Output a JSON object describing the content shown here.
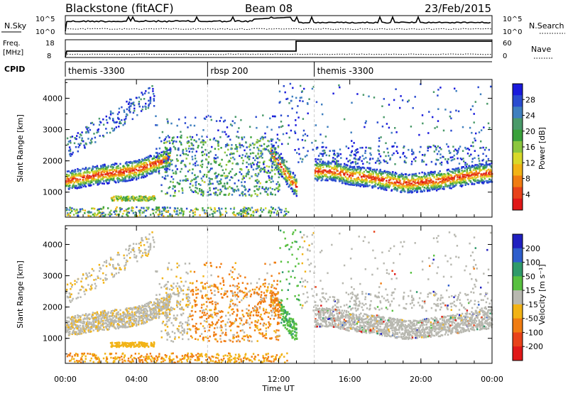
{
  "header": {
    "title": "Blackstone (fitACF)",
    "beam": "Beam 08",
    "date": "23/Feb/2015"
  },
  "nsky_panel": {
    "label": "N.Sky",
    "right_label": "N.Search",
    "left_ticks": [
      "10^5",
      "10^0"
    ],
    "right_ticks": [
      "10^5",
      "10^0"
    ]
  },
  "freq_panel": {
    "label_top": "Freq.",
    "label_unit": "[MHz]",
    "right_label": "Nave",
    "left_ticks": [
      "18",
      "8"
    ],
    "right_ticks": [
      "60",
      "0"
    ]
  },
  "cpid_panel": {
    "label": "CPID",
    "segments": [
      {
        "text": "themis -3300",
        "start_hour": 0
      },
      {
        "text": "rbsp 200",
        "start_hour": 8
      },
      {
        "text": "themis -3300",
        "start_hour": 14
      }
    ]
  },
  "chart_data": [
    {
      "type": "heatmap",
      "name": "power",
      "ylabel": "Slant Range [km]",
      "yticks": [
        1000,
        2000,
        3000,
        4000
      ],
      "ylim": [
        200,
        4600
      ],
      "xlim": [
        0,
        24
      ],
      "colorbar": {
        "label": "Power [dB]",
        "ticks": [
          "4",
          "8",
          "12",
          "16",
          "20",
          "24",
          "28"
        ],
        "colors": [
          "#1a1adc",
          "#2a4bd0",
          "#3f7fbf",
          "#4a9a6a",
          "#3aa13a",
          "#8cc63e",
          "#d8d82a",
          "#f2b316",
          "#f07c12",
          "#e8421a",
          "#e01818"
        ]
      },
      "features": [
        {
          "kind": "band",
          "x": [
            0,
            1,
            2,
            3,
            4,
            5,
            5.8
          ],
          "y": [
            1400,
            1500,
            1600,
            1650,
            1750,
            1950,
            2100
          ],
          "intensity": "high"
        },
        {
          "kind": "band",
          "x": [
            14,
            15,
            16,
            17,
            18,
            19,
            20,
            21,
            22,
            23,
            24
          ],
          "y": [
            1700,
            1700,
            1550,
            1500,
            1400,
            1300,
            1350,
            1400,
            1500,
            1600,
            1650
          ],
          "intensity": "high"
        },
        {
          "kind": "band",
          "x": [
            11.5,
            12,
            12.5,
            12.9
          ],
          "y": [
            2300,
            1900,
            1500,
            1200
          ],
          "intensity": "high"
        }
      ]
    },
    {
      "type": "heatmap",
      "name": "velocity",
      "ylabel": "Slant Range [km]",
      "xlabel": "Time UT",
      "yticks": [
        1000,
        2000,
        3000,
        4000
      ],
      "ylim": [
        200,
        4600
      ],
      "xticks": [
        "00:00",
        "04:00",
        "08:00",
        "12:00",
        "16:00",
        "20:00",
        "00:00"
      ],
      "xlim": [
        0,
        24
      ],
      "colorbar": {
        "label": "Velocity [m s⁻¹]",
        "ticks": [
          "200",
          "100",
          "50",
          "15",
          "-15",
          "-50",
          "-100",
          "-200"
        ],
        "colors": [
          "#2020c0",
          "#2e5ecc",
          "#2f9a6a",
          "#58c040",
          "#b8b8b0",
          "#f2b316",
          "#f07c12",
          "#e8421a",
          "#e01818"
        ]
      }
    }
  ]
}
